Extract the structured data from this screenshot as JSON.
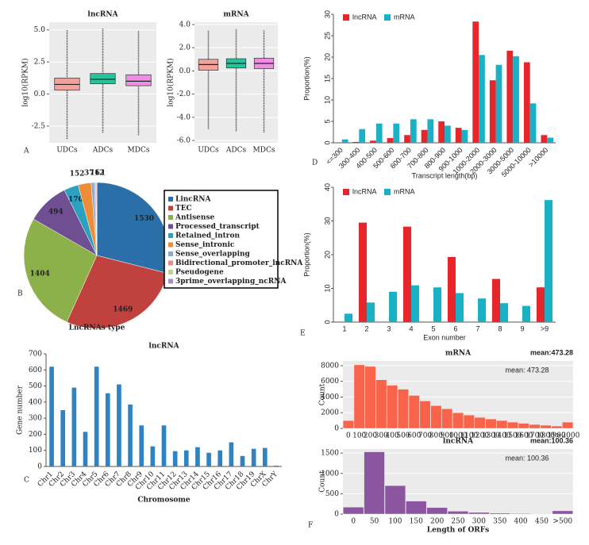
{
  "panels": [
    "A",
    "B",
    "C",
    "D",
    "E",
    "F"
  ],
  "chart_data": [
    {
      "type": "box",
      "title": "lncRNA",
      "ylabel": "log10(RPKM)",
      "categories": [
        "UDCs",
        "ADCs",
        "MDCs"
      ],
      "boxes": [
        {
          "low": -3.5,
          "q1": 0.3,
          "median": 0.75,
          "q3": 1.25,
          "high": 5.0
        },
        {
          "low": -3.0,
          "q1": 0.8,
          "median": 1.15,
          "q3": 1.6,
          "high": 5.1
        },
        {
          "low": -3.2,
          "q1": 0.65,
          "median": 1.0,
          "q3": 1.5,
          "high": 4.9
        }
      ],
      "colors": [
        "#f4a19b",
        "#25c49d",
        "#f08ee6"
      ],
      "ylim": [
        -3.8,
        5.6
      ],
      "yticks": [
        -2.5,
        {
          "value": 0,
          "label": "0.0"
        },
        2.5,
        {
          "value": 5,
          "label": "5.0"
        }
      ],
      "grid": true
    },
    {
      "type": "box",
      "title": "mRNA",
      "ylabel": "log10(RPKM)",
      "categories": [
        "UDCs",
        "ADCs",
        "MDCs"
      ],
      "boxes": [
        {
          "low": -5.0,
          "q1": 0.05,
          "median": 0.55,
          "q3": 1.0,
          "high": 3.5
        },
        {
          "low": -5.2,
          "q1": 0.25,
          "median": 0.65,
          "q3": 1.05,
          "high": 3.6
        },
        {
          "low": -5.3,
          "q1": 0.2,
          "median": 0.65,
          "q3": 1.1,
          "high": 3.5
        }
      ],
      "colors": [
        "#f4a19b",
        "#25c49d",
        "#f08ee6"
      ],
      "ylim": [
        -6.2,
        4.2
      ],
      "yticks": [
        {
          "value": -6,
          "label": "-6.0"
        },
        {
          "value": -4,
          "label": "-4.0"
        },
        {
          "value": -2,
          "label": "-2.0"
        },
        {
          "value": 0,
          "label": "0.0"
        },
        {
          "value": 2,
          "label": "2.0"
        },
        {
          "value": 4,
          "label": "4.0"
        }
      ],
      "grid": true
    },
    {
      "type": "bar",
      "xlabel": "Transcript length(bp)",
      "ylabel": "Proportion(%)",
      "categories": [
        "<=300",
        "300-400",
        "400-500",
        "500-600",
        "600-700",
        "700-800",
        "800-900",
        "900-1000",
        "1000-2000",
        "2000-3000",
        "3000-5000",
        "5000-10000",
        ">10000"
      ],
      "series": [
        {
          "name": "lncRNA",
          "color": "#e6262b",
          "values": [
            0.1,
            0.2,
            0.5,
            1.1,
            1.8,
            3.0,
            5.0,
            3.5,
            28.3,
            14.6,
            21.5,
            18.8,
            1.8
          ]
        },
        {
          "name": "mRNA",
          "color": "#1ab0c6",
          "values": [
            0.8,
            3.2,
            4.5,
            4.5,
            5.5,
            5.5,
            4.0,
            3.0,
            20.5,
            18.2,
            20.2,
            9.2,
            1.2
          ]
        }
      ],
      "ylim": [
        0,
        30
      ],
      "yticks": [
        0,
        5,
        10,
        15,
        20,
        25,
        30
      ],
      "grid": false
    },
    {
      "type": "pie",
      "title": "LncRNAs type",
      "categories": [
        "LincRNA",
        "TEC",
        "Antisense",
        "Processed_transcript",
        "Retained_intron",
        "Sense_intronic",
        "Sense_overlapping",
        "Bidirectional_promoter_lncRNA",
        "Pseudogene",
        "3prime_overlapping_ncRNA"
      ],
      "values": [
        1530,
        1469,
        1404,
        494,
        170,
        152,
        37,
        16,
        12,
        1
      ],
      "colors": [
        "#2a6fa8",
        "#c0413d",
        "#8cb04a",
        "#6f4f91",
        "#2ba0bf",
        "#ef8c35",
        "#8aa9d4",
        "#e88b88",
        "#bcd38a",
        "#a48fc0"
      ]
    },
    {
      "type": "bar",
      "xlabel": "Exon number",
      "ylabel": "Proportion(%)",
      "categories": [
        "1",
        "2",
        "3",
        "4",
        "5",
        "6",
        "7",
        "8",
        "9",
        ">9"
      ],
      "series": [
        {
          "name": "lncRNA",
          "color": "#e6262b",
          "values": [
            0,
            29.5,
            0,
            28.3,
            0,
            19.3,
            0,
            12.8,
            0,
            10.3
          ]
        },
        {
          "name": "mRNA",
          "color": "#1ab0c6",
          "values": [
            2.5,
            5.8,
            9,
            10.9,
            10.3,
            8.6,
            7,
            5.6,
            4.8,
            36.2
          ]
        }
      ],
      "ylim": [
        0,
        40
      ],
      "yticks": [
        0,
        10,
        20,
        30,
        40
      ],
      "grid": false
    },
    {
      "type": "bar",
      "title": "lncRNA",
      "xlabel": "Chromosome",
      "ylabel": "Gene number",
      "categories": [
        "Chr1",
        "Chr2",
        "Chr3",
        "Chr4",
        "Chr5",
        "Chr6",
        "Chr7",
        "Chr8",
        "Chr9",
        "Chr10",
        "Chr11",
        "Chr12",
        "Chr13",
        "Chr14",
        "Chr15",
        "Chr16",
        "Chr17",
        "Chr18",
        "Chr19",
        "ChrX",
        "ChrY"
      ],
      "values": [
        620,
        350,
        490,
        215,
        620,
        455,
        510,
        385,
        255,
        125,
        255,
        95,
        100,
        120,
        85,
        100,
        150,
        65,
        110,
        115,
        5
      ],
      "color": "#2e83c3",
      "ylim": [
        0,
        700
      ],
      "yticks": [
        0,
        100,
        200,
        300,
        400,
        500,
        600,
        700
      ],
      "grid": false
    },
    {
      "type": "hist",
      "title": "mRNA",
      "annotation": "mean:473.28",
      "annotation_inner": "mean: 473.28",
      "ylabel": "Count",
      "categories": [
        "0",
        "100",
        "200",
        "300",
        "400",
        "500",
        "600",
        "700",
        "800",
        "900",
        "1000",
        "1100",
        "1200",
        "1300",
        "1400",
        "1500",
        "1600",
        "1700",
        "1800",
        "1900",
        ">2000"
      ],
      "values": [
        1000,
        8100,
        7900,
        6200,
        5500,
        5000,
        4200,
        3500,
        2900,
        2500,
        2000,
        1700,
        1400,
        1200,
        1000,
        800,
        650,
        500,
        400,
        300,
        800
      ],
      "color": "#f8634a",
      "ylim": [
        0,
        8600
      ],
      "yticks": [
        0,
        2000,
        4000,
        6000,
        8000
      ],
      "grid": true
    },
    {
      "type": "hist",
      "title": "lncRNA",
      "annotation": "mean:100.36",
      "annotation_inner": "mean: 100.36",
      "ylabel": "Count",
      "xlabel": "Length of ORFs",
      "categories": [
        "0",
        "50",
        "100",
        "150",
        "200",
        "250",
        "300",
        "350",
        "400",
        "450",
        ">500"
      ],
      "values": [
        170,
        1530,
        700,
        320,
        160,
        70,
        40,
        25,
        15,
        10,
        80
      ],
      "color": "#8b559f",
      "ylim": [
        0,
        1600
      ],
      "yticks": [
        0,
        500,
        1000,
        1500
      ],
      "grid": true
    }
  ]
}
